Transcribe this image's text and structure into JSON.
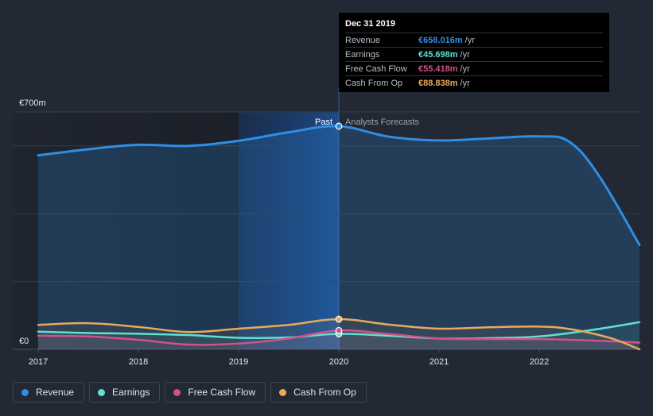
{
  "chart_data": {
    "type": "line",
    "currency": "€",
    "x_ticks": [
      "2017",
      "2018",
      "2019",
      "2020",
      "2021",
      "2022"
    ],
    "y_labels": [
      "€700m",
      "€0"
    ],
    "ylim": [
      0,
      700
    ],
    "xlim": [
      2017.0,
      2023.0
    ],
    "past_label": "Past",
    "forecast_label": "Analysts Forecasts",
    "divider_x": 2020.0,
    "highlight_range": [
      2019.0,
      2020.0
    ],
    "series": [
      {
        "name": "Revenue",
        "color": "#2f8ee3",
        "points": [
          [
            2017.0,
            572
          ],
          [
            2017.5,
            590
          ],
          [
            2018.0,
            603
          ],
          [
            2018.5,
            600
          ],
          [
            2019.0,
            615
          ],
          [
            2019.5,
            640
          ],
          [
            2020.0,
            658
          ],
          [
            2020.5,
            627
          ],
          [
            2021.0,
            616
          ],
          [
            2021.5,
            622
          ],
          [
            2022.0,
            628
          ],
          [
            2022.3,
            612
          ],
          [
            2022.6,
            510
          ],
          [
            2023.0,
            308
          ]
        ]
      },
      {
        "name": "Earnings",
        "color": "#5fe0d0",
        "points": [
          [
            2017.0,
            52
          ],
          [
            2017.5,
            48
          ],
          [
            2018.0,
            46
          ],
          [
            2018.5,
            42
          ],
          [
            2019.0,
            34
          ],
          [
            2019.5,
            35
          ],
          [
            2020.0,
            45.698
          ],
          [
            2020.5,
            40
          ],
          [
            2021.0,
            32
          ],
          [
            2021.5,
            33
          ],
          [
            2022.0,
            38
          ],
          [
            2022.5,
            56
          ],
          [
            2023.0,
            80
          ]
        ]
      },
      {
        "name": "Free Cash Flow",
        "color": "#d2508c",
        "points": [
          [
            2017.0,
            40
          ],
          [
            2017.5,
            38
          ],
          [
            2018.0,
            28
          ],
          [
            2018.5,
            14
          ],
          [
            2019.0,
            17
          ],
          [
            2019.5,
            32
          ],
          [
            2020.0,
            55.418
          ],
          [
            2020.5,
            45
          ],
          [
            2021.0,
            32
          ],
          [
            2021.5,
            30
          ],
          [
            2022.0,
            30
          ],
          [
            2022.5,
            26
          ],
          [
            2023.0,
            20
          ]
        ]
      },
      {
        "name": "Cash From Op",
        "color": "#e8a95b",
        "points": [
          [
            2017.0,
            72
          ],
          [
            2017.5,
            77
          ],
          [
            2018.0,
            66
          ],
          [
            2018.5,
            51
          ],
          [
            2019.0,
            61
          ],
          [
            2019.5,
            72
          ],
          [
            2020.0,
            88.838
          ],
          [
            2020.5,
            73
          ],
          [
            2021.0,
            61
          ],
          [
            2021.5,
            65
          ],
          [
            2022.0,
            67
          ],
          [
            2022.3,
            60
          ],
          [
            2022.7,
            34
          ],
          [
            2023.0,
            0
          ]
        ]
      }
    ]
  },
  "tooltip": {
    "title": "Dec 31 2019",
    "rows": [
      {
        "label": "Revenue",
        "value": "€658.016m",
        "unit": "/yr",
        "color": "#2f8ee3"
      },
      {
        "label": "Earnings",
        "value": "€45.698m",
        "unit": "/yr",
        "color": "#5fe0d0"
      },
      {
        "label": "Free Cash Flow",
        "value": "€55.418m",
        "unit": "/yr",
        "color": "#d2508c"
      },
      {
        "label": "Cash From Op",
        "value": "€88.838m",
        "unit": "/yr",
        "color": "#e8a95b"
      }
    ]
  },
  "legend": [
    {
      "label": "Revenue",
      "color": "#2f8ee3"
    },
    {
      "label": "Earnings",
      "color": "#5fe0d0"
    },
    {
      "label": "Free Cash Flow",
      "color": "#d2508c"
    },
    {
      "label": "Cash From Op",
      "color": "#e8a95b"
    }
  ]
}
